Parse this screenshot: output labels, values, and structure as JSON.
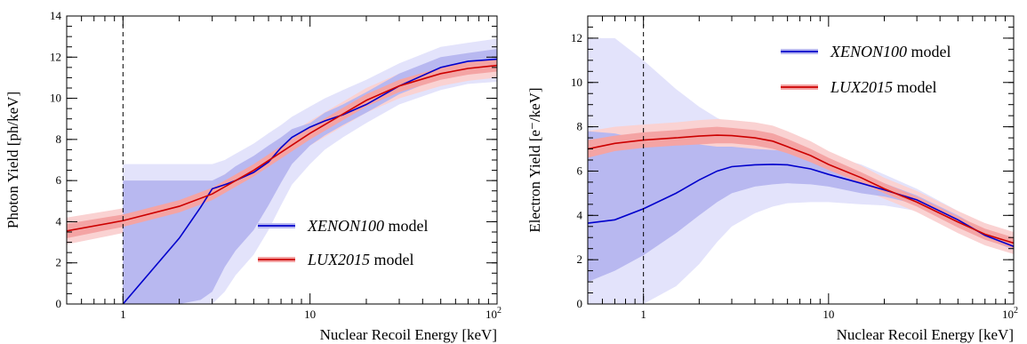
{
  "chart_data": [
    {
      "type": "line",
      "xlabel": "Nuclear Recoil Energy [keV]",
      "ylabel": "Photon Yield [ph/keV]",
      "xscale": "log",
      "xlim": [
        0.5,
        100
      ],
      "ylim": [
        0,
        14
      ],
      "x_ticks": [
        1,
        10,
        100
      ],
      "x_tick_labels": [
        "1",
        "10",
        "10^2"
      ],
      "y_ticks": [
        0,
        2,
        4,
        6,
        8,
        10,
        12,
        14
      ],
      "y_tick_labels": [
        "0",
        "2",
        "4",
        "6",
        "8",
        "10",
        "12",
        "14"
      ],
      "reference_line_x": 1,
      "legend_position": "lower-right",
      "series": [
        {
          "name": "XENON100 model",
          "name_italic": "XENON100",
          "name_rest": " model",
          "color": "#0000cc",
          "band1_color": "#b8b8f0",
          "band2_color": "#e3e3fb",
          "x": [
            1,
            2,
            2.6,
            3,
            3.5,
            4,
            5,
            6,
            7,
            8,
            10,
            12,
            15,
            20,
            30,
            50,
            70,
            100
          ],
          "y": [
            0,
            3.2,
            4.7,
            5.6,
            5.8,
            6.0,
            6.4,
            6.9,
            7.6,
            8.1,
            8.6,
            8.9,
            9.2,
            9.7,
            10.6,
            11.5,
            11.8,
            11.9
          ],
          "band1_lower": [
            0,
            0,
            0.2,
            0.6,
            1.8,
            2.6,
            3.6,
            4.8,
            5.9,
            6.8,
            7.7,
            8.2,
            8.7,
            9.3,
            10.2,
            11.0,
            11.3,
            11.5
          ],
          "band1_upper": [
            6.0,
            6.0,
            6.0,
            6.0,
            6.3,
            6.7,
            7.2,
            7.7,
            8.1,
            8.5,
            8.8,
            9.3,
            9.7,
            10.3,
            11.2,
            12.0,
            12.2,
            12.4
          ],
          "band2_lower": [
            0,
            0,
            0,
            0,
            0.6,
            1.4,
            2.4,
            3.6,
            4.8,
            5.8,
            6.8,
            7.5,
            8.1,
            8.8,
            9.7,
            10.4,
            10.7,
            10.8
          ],
          "band2_upper": [
            6.8,
            6.8,
            6.8,
            6.8,
            7.0,
            7.3,
            7.8,
            8.3,
            8.7,
            9.1,
            9.6,
            10.0,
            10.4,
            10.9,
            11.7,
            12.5,
            12.7,
            12.9
          ]
        },
        {
          "name": "LUX2015 model",
          "name_italic": "LUX2015",
          "name_rest": " model",
          "color": "#cc0000",
          "band1_color": "#f4a4a4",
          "band2_color": "#fad2d2",
          "x": [
            0.5,
            1,
            2,
            3,
            5,
            10,
            20,
            30,
            50,
            70,
            100
          ],
          "y": [
            3.55,
            4.05,
            4.75,
            5.35,
            6.5,
            8.3,
            9.9,
            10.6,
            11.2,
            11.45,
            11.6
          ],
          "band1_lower": [
            3.2,
            3.75,
            4.45,
            5.05,
            6.2,
            8.0,
            9.6,
            10.3,
            10.9,
            11.15,
            11.3
          ],
          "band1_upper": [
            3.9,
            4.35,
            5.05,
            5.65,
            6.8,
            8.6,
            10.2,
            10.9,
            11.5,
            11.75,
            11.9
          ],
          "band2_lower": [
            2.9,
            3.45,
            4.15,
            4.75,
            5.85,
            7.7,
            9.3,
            10.0,
            10.6,
            10.85,
            11.0
          ],
          "band2_upper": [
            4.2,
            4.65,
            5.35,
            5.95,
            7.15,
            8.9,
            10.5,
            11.2,
            11.8,
            12.05,
            12.2
          ]
        }
      ]
    },
    {
      "type": "line",
      "xlabel": "Nuclear Recoil Energy [keV]",
      "ylabel": "Electron Yield [e⁻/keV]",
      "xscale": "log",
      "xlim": [
        0.5,
        100
      ],
      "ylim": [
        0,
        13
      ],
      "x_ticks": [
        1,
        10,
        100
      ],
      "x_tick_labels": [
        "1",
        "10",
        "10^2"
      ],
      "y_ticks": [
        0,
        2,
        4,
        6,
        8,
        10,
        12
      ],
      "y_tick_labels": [
        "0",
        "2",
        "4",
        "6",
        "8",
        "10",
        "12"
      ],
      "reference_line_x": 1,
      "legend_position": "top-right",
      "series": [
        {
          "name": "XENON100 model",
          "name_italic": "XENON100",
          "name_rest": " model",
          "color": "#0000cc",
          "band1_color": "#b8b8f0",
          "band2_color": "#e3e3fb",
          "x": [
            0.5,
            0.7,
            1,
            1.5,
            2,
            2.5,
            3,
            4,
            5,
            6,
            8,
            10,
            15,
            20,
            30,
            50,
            70,
            100
          ],
          "y": [
            3.65,
            3.8,
            4.3,
            5.0,
            5.6,
            6.0,
            6.2,
            6.28,
            6.3,
            6.28,
            6.1,
            5.85,
            5.45,
            5.15,
            4.7,
            3.8,
            3.1,
            2.6
          ],
          "band1_lower": [
            1.0,
            1.5,
            2.2,
            3.2,
            4.0,
            4.6,
            5.0,
            5.3,
            5.4,
            5.45,
            5.4,
            5.3,
            5.0,
            4.85,
            4.5,
            3.6,
            2.95,
            2.45
          ],
          "band1_upper": [
            7.8,
            7.7,
            7.4,
            7.3,
            7.2,
            7.1,
            7.1,
            7.0,
            6.95,
            6.9,
            6.75,
            6.4,
            5.9,
            5.45,
            4.9,
            4.0,
            3.3,
            2.75
          ],
          "band2_lower": [
            0,
            0,
            0,
            0.8,
            1.8,
            2.8,
            3.5,
            4.1,
            4.4,
            4.55,
            4.6,
            4.6,
            4.5,
            4.45,
            4.2,
            3.4,
            2.75,
            2.3
          ],
          "band2_upper": [
            12.0,
            12.0,
            11.0,
            9.7,
            8.9,
            8.4,
            8.1,
            7.7,
            7.45,
            7.25,
            6.95,
            6.7,
            6.3,
            5.85,
            5.2,
            4.2,
            3.5,
            2.95
          ]
        },
        {
          "name": "LUX2015 model",
          "name_italic": "LUX2015",
          "name_rest": " model",
          "color": "#cc0000",
          "band1_color": "#f4a4a4",
          "band2_color": "#fad2d2",
          "x": [
            0.5,
            0.7,
            1,
            1.5,
            2,
            2.5,
            3,
            4,
            5,
            6,
            8,
            10,
            15,
            20,
            30,
            50,
            70,
            100
          ],
          "y": [
            7.0,
            7.25,
            7.4,
            7.5,
            7.58,
            7.62,
            7.6,
            7.5,
            7.35,
            7.1,
            6.7,
            6.3,
            5.7,
            5.2,
            4.6,
            3.7,
            3.15,
            2.75
          ],
          "band1_lower": [
            6.6,
            6.9,
            7.05,
            7.15,
            7.2,
            7.25,
            7.25,
            7.15,
            7.0,
            6.8,
            6.4,
            6.05,
            5.45,
            5.0,
            4.4,
            3.45,
            2.9,
            2.5
          ],
          "band1_upper": [
            7.4,
            7.6,
            7.75,
            7.85,
            7.95,
            8.0,
            7.95,
            7.85,
            7.7,
            7.45,
            7.0,
            6.6,
            5.95,
            5.45,
            4.85,
            3.95,
            3.4,
            3.0
          ],
          "band2_lower": [
            6.2,
            6.5,
            6.7,
            6.8,
            6.85,
            6.9,
            6.9,
            6.8,
            6.65,
            6.45,
            6.1,
            5.75,
            5.2,
            4.75,
            4.15,
            3.2,
            2.65,
            2.25
          ],
          "band2_upper": [
            7.8,
            8.0,
            8.1,
            8.2,
            8.3,
            8.35,
            8.3,
            8.2,
            8.05,
            7.8,
            7.35,
            6.9,
            6.25,
            5.7,
            5.1,
            4.2,
            3.65,
            3.25
          ]
        }
      ]
    }
  ]
}
